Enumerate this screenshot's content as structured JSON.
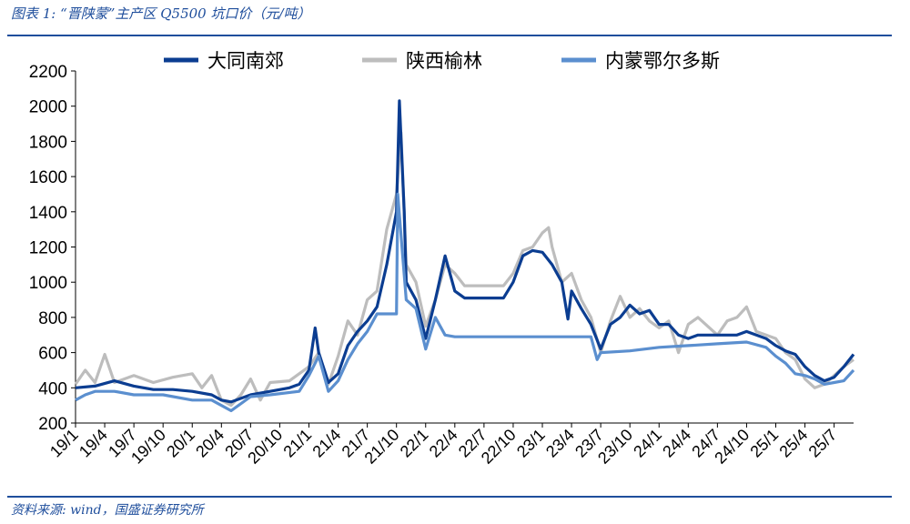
{
  "header": {
    "title": "图表 1:  “晋陕蒙”主产区 Q5500 坑口价（元/吨）"
  },
  "footer": {
    "source": "资料来源:    wind，国盛证券研究所"
  },
  "colors": {
    "datong": "#0b3d91",
    "yulin": "#bdbdbd",
    "ordos": "#5b8fcf",
    "rule": "#1f4e9c"
  },
  "chart_data": {
    "type": "line",
    "ylim": [
      200,
      2200
    ],
    "yticks": [
      200,
      400,
      600,
      800,
      1000,
      1200,
      1400,
      1600,
      1800,
      2000,
      2200
    ],
    "xlim": [
      "2019-01",
      "2025-09"
    ],
    "xticks": [
      "19/1",
      "19/4",
      "19/7",
      "19/10",
      "20/1",
      "20/4",
      "20/7",
      "20/10",
      "21/1",
      "21/4",
      "21/7",
      "21/10",
      "22/1",
      "22/4",
      "22/7",
      "22/10",
      "23/1",
      "23/4",
      "23/7",
      "23/10",
      "24/1",
      "24/4",
      "24/7",
      "24/10",
      "25/1",
      "25/4",
      "25/7"
    ],
    "legend_position": "top",
    "grid": false,
    "series": [
      {
        "name": "大同南郊",
        "points": [
          [
            "2019-01",
            400
          ],
          [
            "2019-03",
            410
          ],
          [
            "2019-05",
            440
          ],
          [
            "2019-07",
            410
          ],
          [
            "2019-09",
            390
          ],
          [
            "2019-11",
            390
          ],
          [
            "2020-01",
            380
          ],
          [
            "2020-03",
            360
          ],
          [
            "2020-04",
            330
          ],
          [
            "2020-05",
            320
          ],
          [
            "2020-07",
            360
          ],
          [
            "2020-09",
            380
          ],
          [
            "2020-11",
            400
          ],
          [
            "2020-12",
            420
          ],
          [
            "2021-01",
            500
          ],
          [
            "2021-01-20",
            740
          ],
          [
            "2021-02",
            600
          ],
          [
            "2021-03",
            430
          ],
          [
            "2021-04",
            480
          ],
          [
            "2021-05",
            640
          ],
          [
            "2021-06",
            720
          ],
          [
            "2021-07",
            780
          ],
          [
            "2021-08",
            860
          ],
          [
            "2021-09",
            1100
          ],
          [
            "2021-10",
            1400
          ],
          [
            "2021-10-10",
            2030
          ],
          [
            "2021-10-25",
            1400
          ],
          [
            "2021-11",
            1000
          ],
          [
            "2021-12",
            900
          ],
          [
            "2022-01",
            680
          ],
          [
            "2022-02",
            900
          ],
          [
            "2022-03",
            1150
          ],
          [
            "2022-04",
            950
          ],
          [
            "2022-05",
            910
          ],
          [
            "2022-07",
            910
          ],
          [
            "2022-09",
            910
          ],
          [
            "2022-10",
            1000
          ],
          [
            "2022-11",
            1150
          ],
          [
            "2022-12",
            1180
          ],
          [
            "2023-01",
            1170
          ],
          [
            "2023-02",
            1100
          ],
          [
            "2023-03",
            1000
          ],
          [
            "2023-03-20",
            790
          ],
          [
            "2023-04",
            950
          ],
          [
            "2023-05",
            850
          ],
          [
            "2023-06",
            760
          ],
          [
            "2023-07",
            620
          ],
          [
            "2023-08",
            760
          ],
          [
            "2023-09",
            800
          ],
          [
            "2023-10",
            870
          ],
          [
            "2023-11",
            820
          ],
          [
            "2023-12",
            840
          ],
          [
            "2024-01",
            760
          ],
          [
            "2024-02",
            760
          ],
          [
            "2024-03",
            700
          ],
          [
            "2024-04",
            680
          ],
          [
            "2024-05",
            700
          ],
          [
            "2024-07",
            700
          ],
          [
            "2024-09",
            700
          ],
          [
            "2024-10",
            720
          ],
          [
            "2024-11",
            700
          ],
          [
            "2024-12",
            680
          ],
          [
            "2025-01",
            640
          ],
          [
            "2025-02",
            610
          ],
          [
            "2025-03",
            590
          ],
          [
            "2025-04",
            520
          ],
          [
            "2025-05",
            470
          ],
          [
            "2025-06",
            440
          ],
          [
            "2025-07",
            460
          ],
          [
            "2025-08",
            520
          ],
          [
            "2025-09",
            590
          ]
        ]
      },
      {
        "name": "陕西榆林",
        "points": [
          [
            "2019-01",
            420
          ],
          [
            "2019-02",
            500
          ],
          [
            "2019-03",
            430
          ],
          [
            "2019-04",
            590
          ],
          [
            "2019-05",
            430
          ],
          [
            "2019-07",
            470
          ],
          [
            "2019-09",
            430
          ],
          [
            "2019-11",
            460
          ],
          [
            "2020-01",
            480
          ],
          [
            "2020-02",
            400
          ],
          [
            "2020-03",
            470
          ],
          [
            "2020-04",
            330
          ],
          [
            "2020-05",
            300
          ],
          [
            "2020-06",
            360
          ],
          [
            "2020-07",
            450
          ],
          [
            "2020-08",
            330
          ],
          [
            "2020-09",
            430
          ],
          [
            "2020-11",
            440
          ],
          [
            "2021-01",
            520
          ],
          [
            "2021-02",
            600
          ],
          [
            "2021-03",
            420
          ],
          [
            "2021-04",
            580
          ],
          [
            "2021-05",
            780
          ],
          [
            "2021-06",
            700
          ],
          [
            "2021-07",
            900
          ],
          [
            "2021-08",
            950
          ],
          [
            "2021-09",
            1300
          ],
          [
            "2021-10",
            1500
          ],
          [
            "2021-10-15",
            1850
          ],
          [
            "2021-11",
            1100
          ],
          [
            "2021-12",
            1000
          ],
          [
            "2022-01",
            750
          ],
          [
            "2022-02",
            900
          ],
          [
            "2022-03",
            1100
          ],
          [
            "2022-04",
            1050
          ],
          [
            "2022-05",
            980
          ],
          [
            "2022-07",
            980
          ],
          [
            "2022-09",
            980
          ],
          [
            "2022-10",
            1050
          ],
          [
            "2022-11",
            1180
          ],
          [
            "2022-12",
            1200
          ],
          [
            "2023-01",
            1280
          ],
          [
            "2023-01-20",
            1310
          ],
          [
            "2023-02",
            1200
          ],
          [
            "2023-03",
            1000
          ],
          [
            "2023-04",
            1050
          ],
          [
            "2023-05",
            900
          ],
          [
            "2023-06",
            800
          ],
          [
            "2023-07",
            600
          ],
          [
            "2023-08",
            780
          ],
          [
            "2023-09",
            920
          ],
          [
            "2023-10",
            800
          ],
          [
            "2023-11",
            850
          ],
          [
            "2023-12",
            780
          ],
          [
            "2024-01",
            740
          ],
          [
            "2024-02",
            780
          ],
          [
            "2024-03",
            600
          ],
          [
            "2024-04",
            760
          ],
          [
            "2024-05",
            800
          ],
          [
            "2024-07",
            700
          ],
          [
            "2024-08",
            780
          ],
          [
            "2024-09",
            800
          ],
          [
            "2024-10",
            860
          ],
          [
            "2024-11",
            720
          ],
          [
            "2024-12",
            700
          ],
          [
            "2025-01",
            680
          ],
          [
            "2025-02",
            600
          ],
          [
            "2025-03",
            560
          ],
          [
            "2025-04",
            450
          ],
          [
            "2025-05",
            400
          ],
          [
            "2025-06",
            420
          ],
          [
            "2025-07",
            470
          ],
          [
            "2025-08",
            520
          ],
          [
            "2025-09",
            560
          ]
        ]
      },
      {
        "name": "内蒙鄂尔多斯",
        "points": [
          [
            "2019-01",
            330
          ],
          [
            "2019-02",
            360
          ],
          [
            "2019-03",
            380
          ],
          [
            "2019-05",
            380
          ],
          [
            "2019-07",
            360
          ],
          [
            "2019-10",
            360
          ],
          [
            "2020-01",
            330
          ],
          [
            "2020-03",
            330
          ],
          [
            "2020-05",
            270
          ],
          [
            "2020-07",
            350
          ],
          [
            "2020-09",
            360
          ],
          [
            "2020-12",
            380
          ],
          [
            "2021-01",
            470
          ],
          [
            "2021-02",
            580
          ],
          [
            "2021-03",
            380
          ],
          [
            "2021-04",
            440
          ],
          [
            "2021-05",
            560
          ],
          [
            "2021-06",
            650
          ],
          [
            "2021-07",
            720
          ],
          [
            "2021-08",
            820
          ],
          [
            "2021-10",
            820
          ],
          [
            "2021-10-05",
            1500
          ],
          [
            "2021-10-20",
            1150
          ],
          [
            "2021-11",
            900
          ],
          [
            "2021-12",
            850
          ],
          [
            "2022-01",
            620
          ],
          [
            "2022-02",
            800
          ],
          [
            "2022-03",
            700
          ],
          [
            "2022-04",
            690
          ],
          [
            "2022-07",
            690
          ],
          [
            "2022-10",
            690
          ],
          [
            "2023-01",
            690
          ],
          [
            "2023-04",
            690
          ],
          [
            "2023-06",
            690
          ],
          [
            "2023-06-20",
            560
          ],
          [
            "2023-07",
            600
          ],
          [
            "2023-10",
            610
          ],
          [
            "2024-01",
            630
          ],
          [
            "2024-04",
            640
          ],
          [
            "2024-07",
            650
          ],
          [
            "2024-10",
            660
          ],
          [
            "2024-12",
            630
          ],
          [
            "2025-01",
            580
          ],
          [
            "2025-02",
            540
          ],
          [
            "2025-03",
            480
          ],
          [
            "2025-04",
            470
          ],
          [
            "2025-05",
            450
          ],
          [
            "2025-06",
            420
          ],
          [
            "2025-07",
            430
          ],
          [
            "2025-08",
            440
          ],
          [
            "2025-09",
            500
          ]
        ]
      }
    ]
  }
}
